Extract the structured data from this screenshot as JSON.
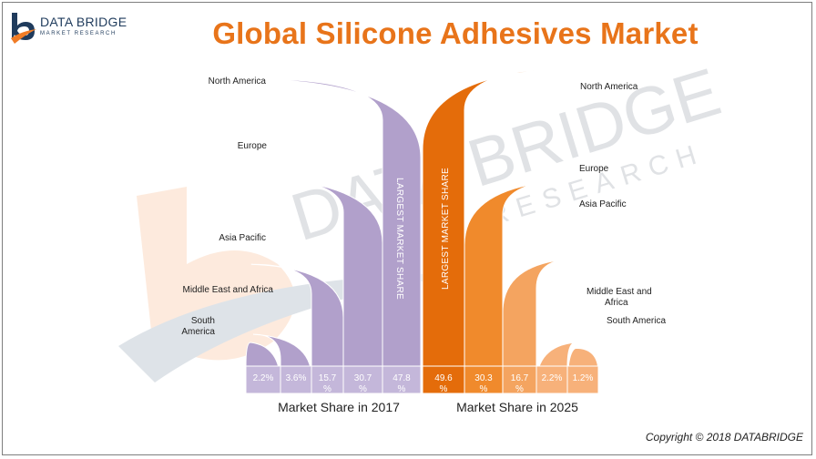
{
  "header": {
    "logo_name": "DATA BRIDGE",
    "logo_sub": "MARKET RESEARCH",
    "title": "Global Silicone Adhesives Market"
  },
  "footer": {
    "copyright": "Copyright © 2018 DATABRIDGE"
  },
  "watermark": {
    "name": "DATA BRIDGE",
    "sub": "RESEARCH"
  },
  "chart_data": {
    "type": "bar",
    "colors": {
      "2017": "#b1a0cb",
      "2017_label_row": "#c4b7da",
      "2025": [
        "#e46c0a",
        "#f08a2c",
        "#f4a460",
        "#f7b17a"
      ],
      "label_text": "#ffffff"
    },
    "series": [
      {
        "name": "Market Share in 2017",
        "side_label": "LARGEST MARKET SHARE",
        "points": [
          {
            "region": "South America",
            "region_lines": [
              "South",
              "America"
            ],
            "value": 2.2,
            "value_lines": [
              "2.2%"
            ]
          },
          {
            "region": "Middle East and Africa",
            "region_lines": [
              "Middle East and Africa"
            ],
            "value": 3.6,
            "value_lines": [
              "3.6%"
            ]
          },
          {
            "region": "Asia Pacific",
            "region_lines": [
              "Asia Pacific"
            ],
            "value": 15.7,
            "value_lines": [
              "15.7",
              "%"
            ]
          },
          {
            "region": "Europe",
            "region_lines": [
              "Europe"
            ],
            "value": 30.7,
            "value_lines": [
              "30.7",
              "%"
            ]
          },
          {
            "region": "North America",
            "region_lines": [
              "North America"
            ],
            "value": 47.8,
            "value_lines": [
              "47.8",
              "%"
            ]
          }
        ]
      },
      {
        "name": "Market Share in 2025",
        "side_label": "LARGEST MARKET SHARE",
        "points": [
          {
            "region": "North America",
            "region_lines": [
              "North America"
            ],
            "value": 49.6,
            "value_lines": [
              "49.6",
              "%"
            ]
          },
          {
            "region": "Europe",
            "region_lines": [
              "Europe"
            ],
            "value": 30.3,
            "value_lines": [
              "30.3",
              "%"
            ]
          },
          {
            "region": "Asia Pacific",
            "region_lines": [
              "Asia Pacific"
            ],
            "value": 16.7,
            "value_lines": [
              "16.7",
              "%"
            ]
          },
          {
            "region": "Middle East and Africa",
            "region_lines": [
              "Middle East and",
              "Africa"
            ],
            "value": 2.2,
            "value_lines": [
              "2.2%"
            ]
          },
          {
            "region": "South America",
            "region_lines": [
              "South America"
            ],
            "value": 1.2,
            "value_lines": [
              "1.2%"
            ]
          }
        ]
      }
    ]
  }
}
